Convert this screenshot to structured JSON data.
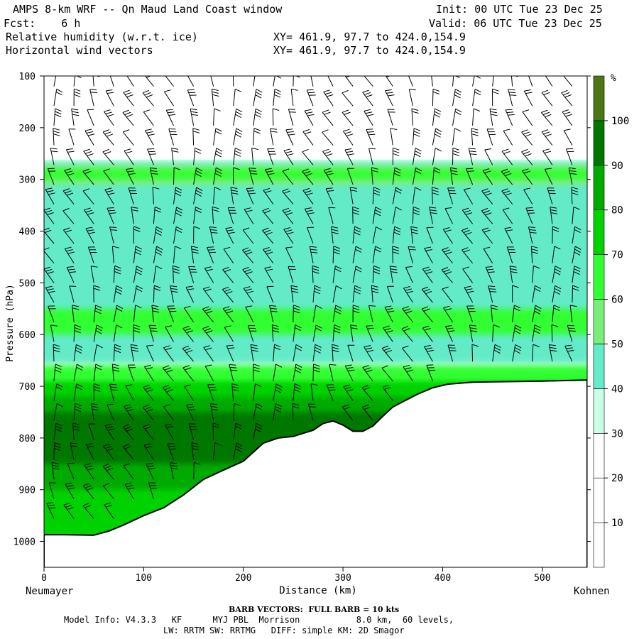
{
  "header": {
    "title": "AMPS 8-km WRF -- Qn Maud Land Coast window",
    "init": "Init: 00 UTC Tue 23 Dec 25",
    "fcst": "Fcst:    6 h",
    "valid": "Valid: 06 UTC Tue 23 Dec 25",
    "field1": "Relative humidity (w.r.t. ice)",
    "xy1": "XY= 461.9, 97.7 to 424.0,154.9",
    "field2": "Horizontal wind vectors",
    "xy2": "XY= 461.9, 97.7 to 424.0,154.9"
  },
  "footer": {
    "barb": "BARB VECTORS:  FULL BARB = 10 kts",
    "model1": "Model Info: V4.3.3   KF      MYJ PBL  Morrison           8.0 km,  60 levels,",
    "model2": "LW: RRTM SW: RRTMG   DIFF: simple KM: 2D Smagor"
  },
  "chart_data": {
    "type": "heatmap",
    "title": "Relative humidity (w.r.t. ice) cross-section with horizontal wind barbs",
    "xlabel": "Distance (km)",
    "ylabel": "Pressure (hPa)",
    "x_endpoints": {
      "left": "Neumayer",
      "right": "Kohnen"
    },
    "xlim": [
      0,
      545
    ],
    "ylim": [
      1050,
      100
    ],
    "x_ticks": [
      0,
      100,
      200,
      300,
      400,
      500
    ],
    "y_ticks": [
      100,
      200,
      300,
      400,
      500,
      600,
      700,
      800,
      900,
      1000
    ],
    "colorbar": {
      "unit": "%",
      "levels": [
        10,
        20,
        30,
        40,
        50,
        60,
        70,
        80,
        90,
        100
      ],
      "colors": [
        "#ffffff",
        "#ffffff",
        "#ffffff",
        "#c8ffe6",
        "#64ebc8",
        "#78f078",
        "#32ff32",
        "#00d200",
        "#00aa00",
        "#007800",
        "#4b7814"
      ]
    },
    "terrain": {
      "x": [
        0,
        20,
        50,
        65,
        80,
        100,
        120,
        140,
        160,
        180,
        200,
        220,
        235,
        250,
        270,
        280,
        290,
        300,
        310,
        320,
        330,
        340,
        350,
        360,
        375,
        390,
        405,
        430,
        500,
        545
      ],
      "p": [
        987,
        987,
        988,
        980,
        968,
        950,
        935,
        910,
        880,
        862,
        845,
        810,
        800,
        797,
        785,
        772,
        767,
        775,
        787,
        787,
        777,
        758,
        740,
        730,
        715,
        703,
        696,
        692,
        690,
        688
      ]
    },
    "rh_fields": [
      {
        "rh": 35,
        "p_top": 262,
        "p_bottom": 1000
      },
      {
        "rh": 45,
        "p_top": 268,
        "p_bottom": 655
      },
      {
        "rh": 55,
        "p_top": 272,
        "p_bottom": 310
      },
      {
        "rh": 65,
        "p_top": 280,
        "p_bottom": 300
      },
      {
        "rh": 65,
        "p_top": 550,
        "p_bottom": 600
      },
      {
        "rh": 65,
        "p_top": 660,
        "p_bottom": 1000
      },
      {
        "rh": 75,
        "p_top": 690,
        "p_bottom": 1000
      },
      {
        "rh": 85,
        "p_top": 720,
        "p_bottom": 900
      },
      {
        "rh": 95,
        "p_top": 750,
        "p_bottom": 850
      }
    ]
  }
}
